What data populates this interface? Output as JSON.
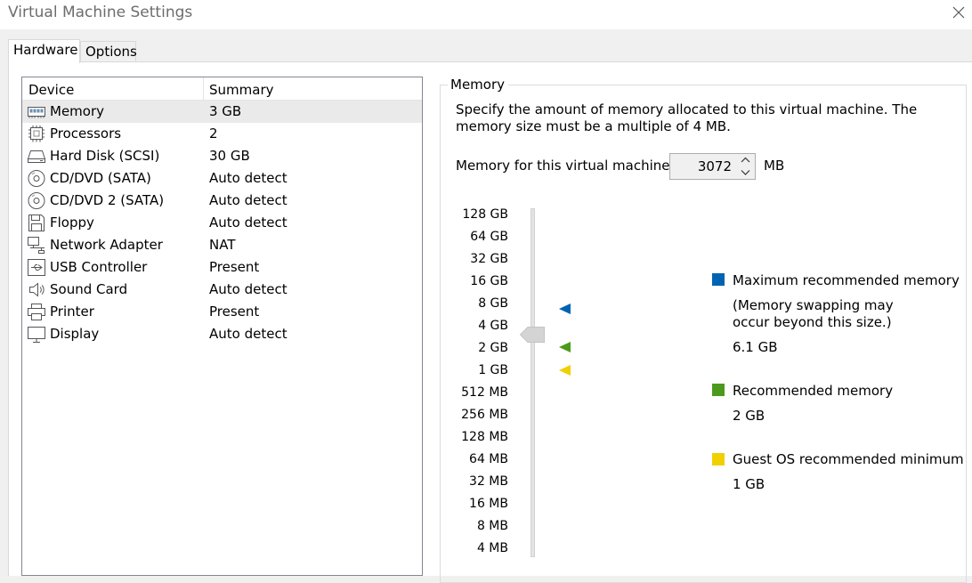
{
  "window": {
    "title": "Virtual Machine Settings"
  },
  "tabs": [
    {
      "label": "Hardware"
    },
    {
      "label": "Options"
    }
  ],
  "device_list": {
    "headers": {
      "device": "Device",
      "summary": "Summary"
    },
    "selected_index": 0,
    "rows": [
      {
        "name": "Memory",
        "summary": "3 GB",
        "icon": "memory-icon"
      },
      {
        "name": "Processors",
        "summary": "2",
        "icon": "processor-icon"
      },
      {
        "name": "Hard Disk (SCSI)",
        "summary": "30 GB",
        "icon": "hard-disk-icon"
      },
      {
        "name": "CD/DVD (SATA)",
        "summary": "Auto detect",
        "icon": "cd-dvd-icon"
      },
      {
        "name": "CD/DVD 2 (SATA)",
        "summary": "Auto detect",
        "icon": "cd-dvd-icon"
      },
      {
        "name": "Floppy",
        "summary": "Auto detect",
        "icon": "floppy-icon"
      },
      {
        "name": "Network Adapter",
        "summary": "NAT",
        "icon": "network-icon"
      },
      {
        "name": "USB Controller",
        "summary": "Present",
        "icon": "usb-icon"
      },
      {
        "name": "Sound Card",
        "summary": "Auto detect",
        "icon": "speaker-icon"
      },
      {
        "name": "Printer",
        "summary": "Present",
        "icon": "printer-icon"
      },
      {
        "name": "Display",
        "summary": "Auto detect",
        "icon": "display-icon"
      }
    ]
  },
  "memory": {
    "group_title": "Memory",
    "description": "Specify the amount of memory allocated to this virtual machine. The memory size must be a multiple of 4 MB.",
    "field_label": "Memory for this virtual machine:",
    "value": "3072",
    "unit": "MB",
    "scale": [
      "128 GB",
      "64 GB",
      "32 GB",
      "16 GB",
      "8 GB",
      "4 GB",
      "2 GB",
      "1 GB",
      "512 MB",
      "256 MB",
      "128 MB",
      "64 MB",
      "32 MB",
      "16 MB",
      "8 MB",
      "4 MB"
    ],
    "legend": {
      "max": {
        "title": "Maximum recommended memory",
        "note_line1": "(Memory swapping may",
        "note_line2": "occur beyond this size.)",
        "value": "6.1 GB",
        "color": "#0063b1"
      },
      "recommended": {
        "title": "Recommended memory",
        "value": "2 GB",
        "color": "#4c9a1b"
      },
      "minimum": {
        "title": "Guest OS recommended minimum",
        "value": "1 GB",
        "color": "#f0d000"
      }
    }
  },
  "colors": {
    "window_bg": "#f0f0f0",
    "selection": "#eaeaea",
    "track": "#e3e3e3"
  }
}
